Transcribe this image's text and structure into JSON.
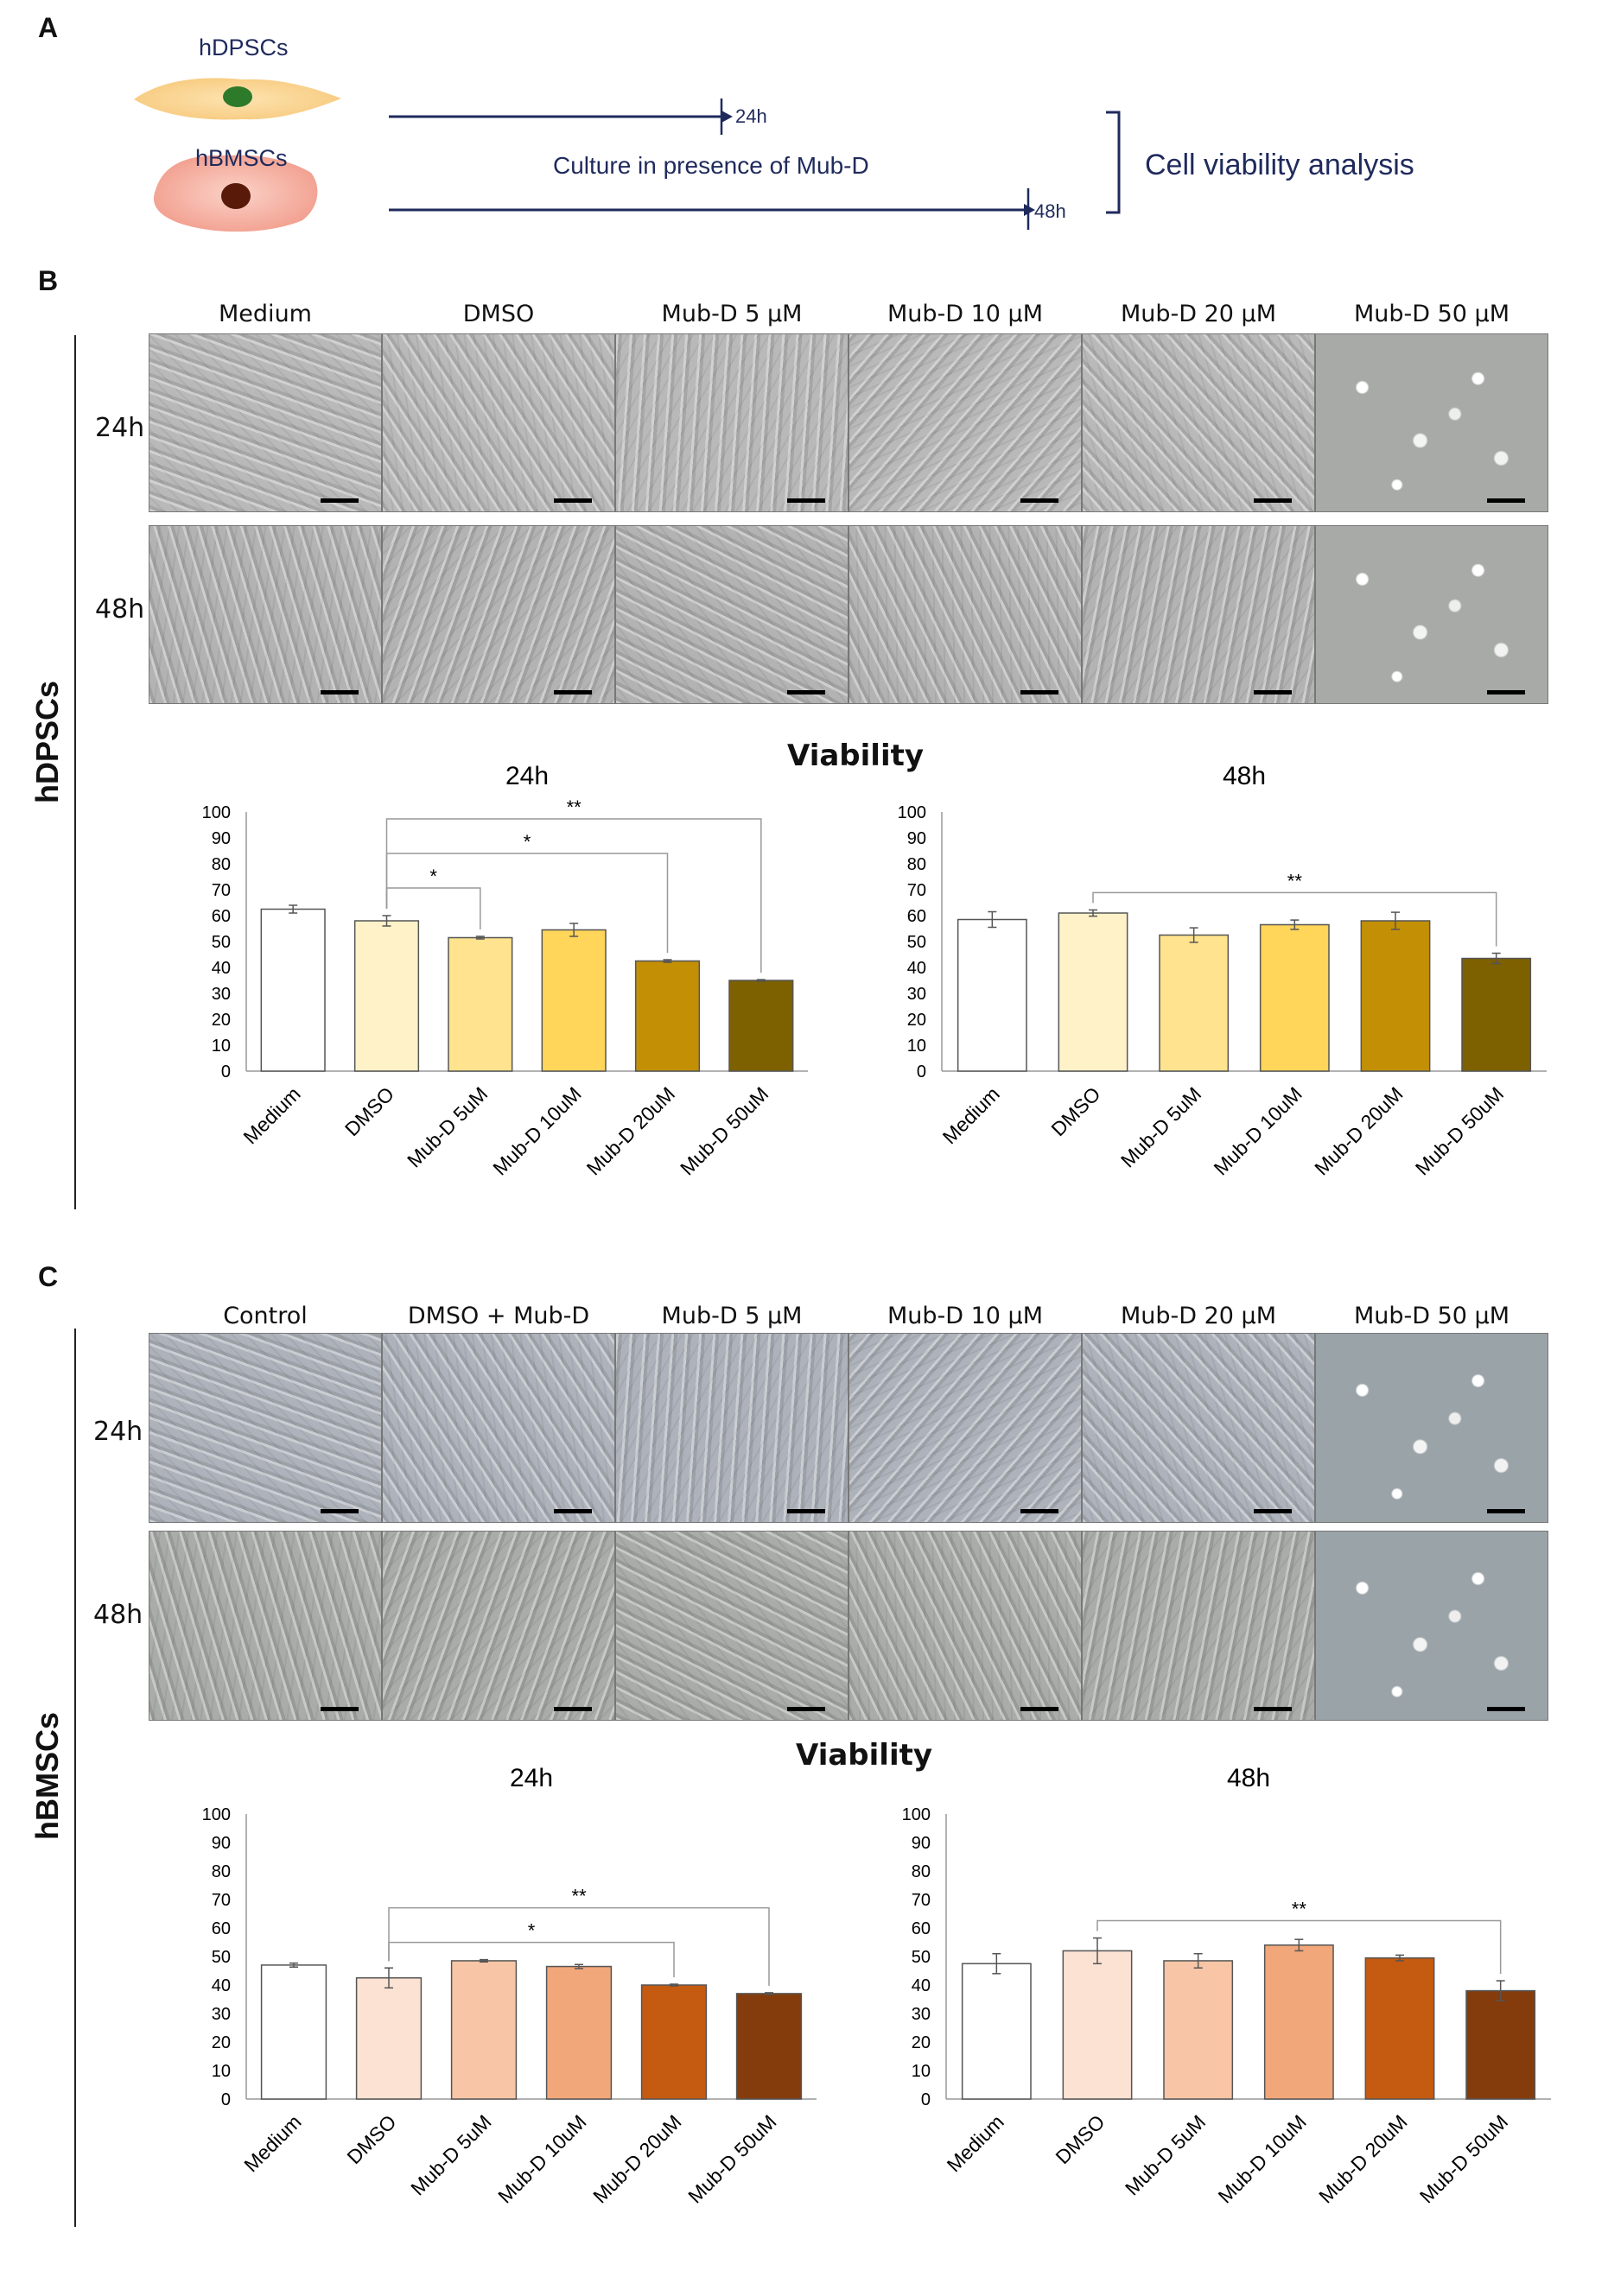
{
  "panelA": {
    "letter": "A",
    "cell1": "hDPSCs",
    "cell2": "hBMSCs",
    "t24": "24h",
    "t48": "48h",
    "culture": "Culture in presence of Mub-D",
    "analysis": "Cell viability analysis"
  },
  "panelB": {
    "letter": "B",
    "side_label": "hDPSCs",
    "columns": [
      "Medium",
      "DMSO",
      "Mub-D 5 µM",
      "Mub-D 10 µM",
      "Mub-D 20 µM",
      "Mub-D 50 µM"
    ],
    "rows": [
      "24h",
      "48h"
    ],
    "viability_title": "Viability"
  },
  "panelC": {
    "letter": "C",
    "side_label": "hBMSCs",
    "columns": [
      "Control",
      "DMSO + Mub-D",
      "Mub-D 5 µM",
      "Mub-D 10 µM",
      "Mub-D 20 µM",
      "Mub-D 50 µM"
    ],
    "rows": [
      "24h",
      "48h"
    ],
    "viability_title": "Viability"
  },
  "chart_data": [
    {
      "id": "b24",
      "type": "bar",
      "title": "24h",
      "categories": [
        "Medium",
        "DMSO",
        "Mub-D 5uM",
        "Mub-D 10uM",
        "Mub-D 20uM",
        "Mub-D 50uM"
      ],
      "values": [
        62.5,
        58,
        51.5,
        54.5,
        42.5,
        35
      ],
      "errors": [
        1.5,
        2,
        0.5,
        2.5,
        0.5,
        0.3
      ],
      "colors": [
        "#ffffff",
        "#fff2c8",
        "#ffe38e",
        "#ffd55a",
        "#c38f05",
        "#7d6000"
      ],
      "ylim": [
        0,
        100
      ],
      "yticks": [
        0,
        10,
        20,
        30,
        40,
        50,
        60,
        70,
        80,
        90,
        100
      ],
      "sig": [
        {
          "from": 1,
          "to": 2,
          "label": "*"
        },
        {
          "from": 1,
          "to": 4,
          "label": "*"
        },
        {
          "from": 1,
          "to": 5,
          "label": "**"
        }
      ]
    },
    {
      "id": "b48",
      "type": "bar",
      "title": "48h",
      "categories": [
        "Medium",
        "DMSO",
        "Mub-D 5uM",
        "Mub-D 10uM",
        "Mub-D 20uM",
        "Mub-D 50uM"
      ],
      "values": [
        58.5,
        61,
        52.5,
        56.5,
        58,
        43.5
      ],
      "errors": [
        3,
        1.2,
        2.8,
        1.8,
        3.3,
        2
      ],
      "colors": [
        "#ffffff",
        "#fff2c8",
        "#ffe38e",
        "#ffd55a",
        "#c38f05",
        "#7d6000"
      ],
      "ylim": [
        0,
        100
      ],
      "yticks": [
        0,
        10,
        20,
        30,
        40,
        50,
        60,
        70,
        80,
        90,
        100
      ],
      "sig": [
        {
          "from": 1,
          "to": 5,
          "label": "**"
        }
      ]
    },
    {
      "id": "c24",
      "type": "bar",
      "title": "24h",
      "categories": [
        "Medium",
        "DMSO",
        "Mub-D 5uM",
        "Mub-D 10uM",
        "Mub-D 20uM",
        "Mub-D 50uM"
      ],
      "values": [
        47,
        42.5,
        48.5,
        46.5,
        40,
        37
      ],
      "errors": [
        0.7,
        3.5,
        0.4,
        0.7,
        0.3,
        0.3
      ],
      "colors": [
        "#ffffff",
        "#fbe2d3",
        "#f8c6a6",
        "#f2a77a",
        "#c55a11",
        "#843c0c"
      ],
      "ylim": [
        0,
        100
      ],
      "yticks": [
        0,
        10,
        20,
        30,
        40,
        50,
        60,
        70,
        80,
        90,
        100
      ],
      "sig": [
        {
          "from": 1,
          "to": 4,
          "label": "*"
        },
        {
          "from": 1,
          "to": 5,
          "label": "**"
        }
      ]
    },
    {
      "id": "c48",
      "type": "bar",
      "title": "48h",
      "categories": [
        "Medium",
        "DMSO",
        "Mub-D 5uM",
        "Mub-D 10uM",
        "Mub-D 20uM",
        "Mub-D 50uM"
      ],
      "values": [
        47.5,
        52,
        48.5,
        54,
        49.5,
        38
      ],
      "errors": [
        3.5,
        4.5,
        2.5,
        2,
        1,
        3.5
      ],
      "colors": [
        "#ffffff",
        "#fbe2d3",
        "#f8c6a6",
        "#f2a77a",
        "#c55a11",
        "#843c0c"
      ],
      "ylim": [
        0,
        100
      ],
      "yticks": [
        0,
        10,
        20,
        30,
        40,
        50,
        60,
        70,
        80,
        90,
        100
      ],
      "sig": [
        {
          "from": 1,
          "to": 5,
          "label": "**"
        }
      ]
    }
  ]
}
